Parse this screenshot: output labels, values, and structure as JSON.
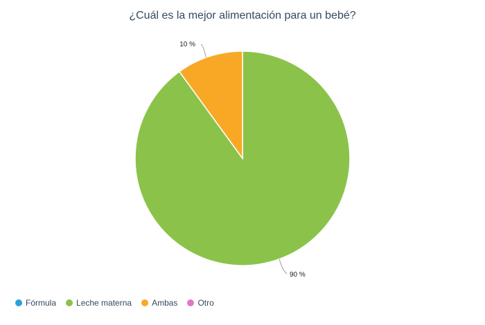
{
  "chart_data": {
    "type": "pie",
    "title": "¿Cuál es la mejor alimentación para un bebé?",
    "slices": [
      {
        "name": "Fórmula",
        "value": 0,
        "label": "",
        "color": "#2d9fd9"
      },
      {
        "name": "Leche materna",
        "value": 90,
        "label": "90 %",
        "color": "#8bc34a"
      },
      {
        "name": "Ambas",
        "value": 10,
        "label": "10 %",
        "color": "#f9a825"
      },
      {
        "name": "Otro",
        "value": 0,
        "label": "",
        "color": "#e377c2"
      }
    ],
    "legend_position": "bottom-left"
  }
}
